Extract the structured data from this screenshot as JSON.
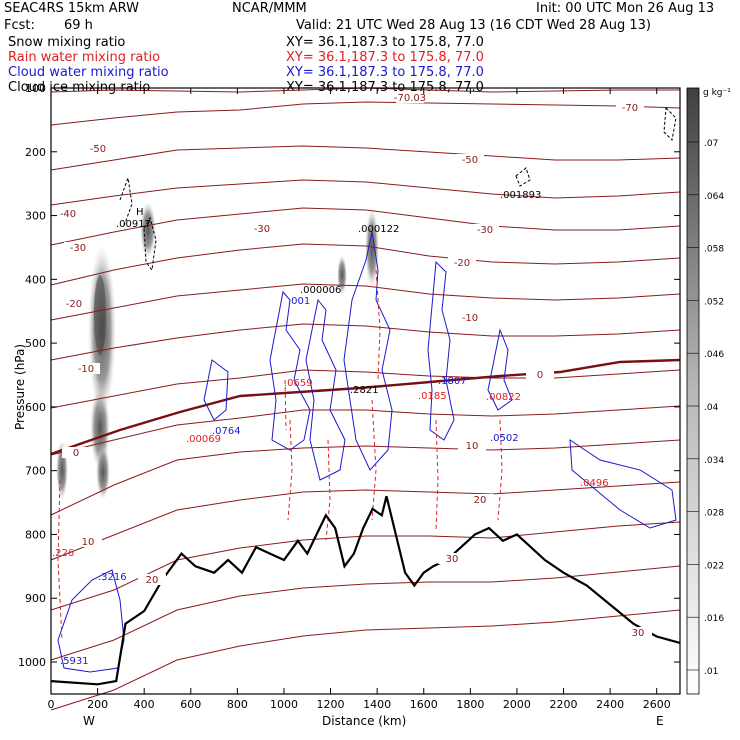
{
  "header": {
    "model": "SEAC4RS 15km ARW",
    "center": "NCAR/MMM",
    "init": "Init: 00 UTC Mon 26 Aug 13",
    "fcst_label": "Fcst:",
    "fcst_value": "69 h",
    "valid": "Valid: 21 UTC Wed 28 Aug 13 (16 CDT Wed 28 Aug 13)"
  },
  "fields": [
    {
      "name": "Snow mixing ratio",
      "xy": "XY=  36.1,187.3 to 175.8, 77.0",
      "color": "#000000"
    },
    {
      "name": "Rain water mixing ratio",
      "xy": "XY=  36.1,187.3 to 175.8, 77.0",
      "color": "#e02020"
    },
    {
      "name": "Cloud water mixing ratio",
      "xy": "XY=  36.1,187.3 to 175.8, 77.0",
      "color": "#1a1acc"
    },
    {
      "name": "Cloud ice mixing ratio",
      "xy": "XY=  36.1,187.3 to 175.8, 77.0",
      "color": "#000000"
    }
  ],
  "chart_data": {
    "type": "cross-section",
    "xlabel": "Distance (km)",
    "ylabel": "Pressure (hPa)",
    "xlim": [
      0,
      2700
    ],
    "ylim": [
      1050,
      100
    ],
    "x_ticks": [
      0,
      200,
      400,
      600,
      800,
      1000,
      1200,
      1400,
      1600,
      1800,
      2000,
      2200,
      2400,
      2600
    ],
    "y_ticks": [
      100,
      200,
      300,
      400,
      500,
      600,
      700,
      800,
      900,
      1000
    ],
    "x_ends": {
      "left": "W",
      "right": "E"
    },
    "colorbar": {
      "unit": "g kg⁻¹",
      "ticks": [
        ".01",
        ".016",
        ".022",
        ".028",
        ".034",
        ".04",
        ".046",
        ".052",
        ".058",
        ".064",
        ".07"
      ]
    },
    "temperature_contour_labels": [
      "-70.03",
      "-70",
      "-50",
      "-50",
      "-40",
      "-30",
      "-30",
      "-30",
      "-20",
      "-20",
      "-10",
      "-10",
      "0",
      "0",
      "10",
      "10",
      "20",
      "20",
      "30",
      "30"
    ],
    "annotations": [
      {
        "text": "H",
        "color": "#000"
      },
      {
        "text": ".00917",
        "color": "#000"
      },
      {
        "text": ".000122",
        "color": "#000"
      },
      {
        "text": ".000006",
        "color": "#000"
      },
      {
        "text": ".001893",
        "color": "#000"
      },
      {
        "text": ".001",
        "color": "#1a1acc"
      },
      {
        "text": ".0764",
        "color": "#1a1acc"
      },
      {
        "text": ".3216",
        "color": "#1a1acc"
      },
      {
        "text": ".5931",
        "color": "#1a1acc"
      },
      {
        "text": ".1807",
        "color": "#1a1acc"
      },
      {
        "text": ".0502",
        "color": "#1a1acc"
      },
      {
        "text": ".2821",
        "color": "#000"
      },
      {
        "text": ".00069",
        "color": "#e02020"
      },
      {
        "text": ".0659",
        "color": "#e02020"
      },
      {
        "text": ".0185",
        "color": "#e02020"
      },
      {
        "text": ".00822",
        "color": "#e02020"
      },
      {
        "text": ".0496",
        "color": "#e02020"
      },
      {
        "text": ".226",
        "color": "#e02020"
      }
    ]
  }
}
